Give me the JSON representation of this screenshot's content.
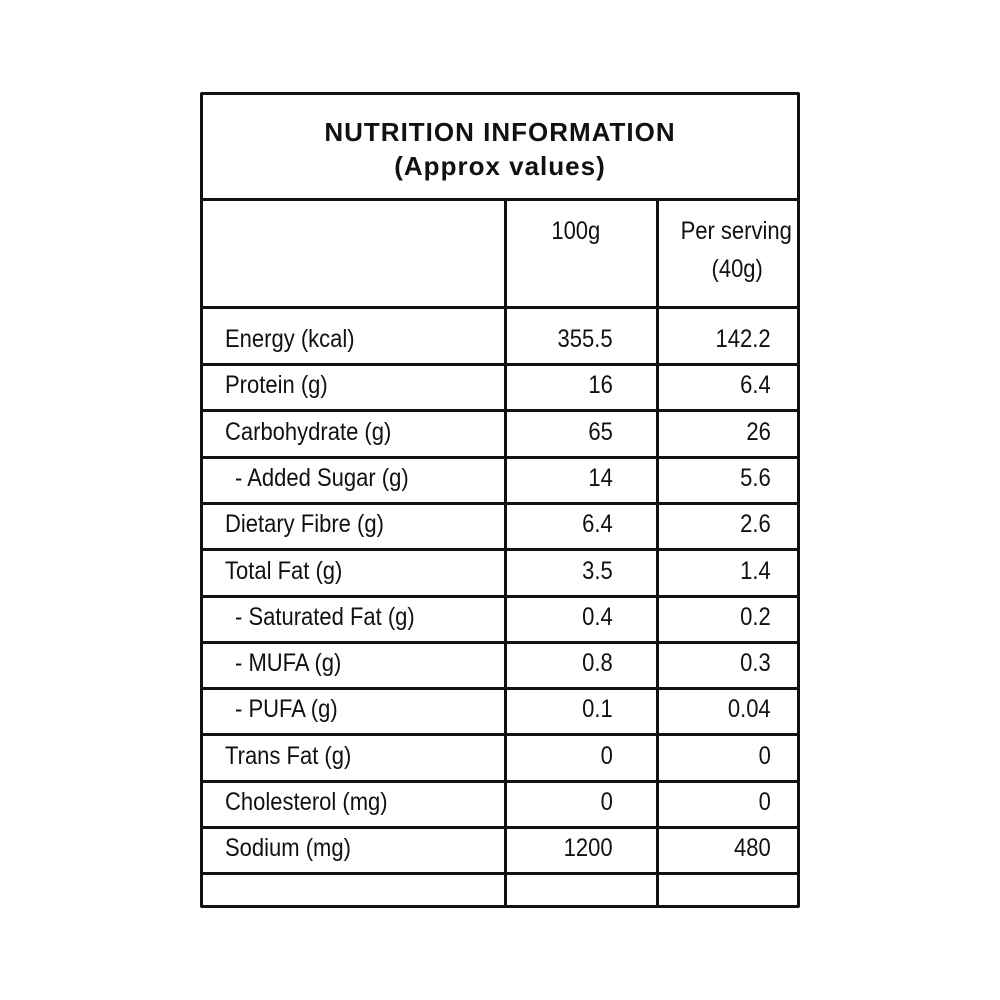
{
  "title": {
    "line1": "NUTRITION INFORMATION",
    "line2": "(Approx values)"
  },
  "header": {
    "col1": "100g",
    "col2": {
      "line1": "Per serving",
      "line2": "(40g)"
    }
  },
  "rows": [
    [
      "Energy (kcal)",
      "355.5",
      "142.2"
    ],
    [
      "Protein (g)",
      "16",
      "6.4"
    ],
    [
      "Carbohydrate (g)",
      "65",
      "26"
    ],
    [
      "- Added Sugar (g)",
      "14",
      "5.6"
    ],
    [
      "Dietary Fibre (g)",
      "6.4",
      "2.6"
    ],
    [
      "Total Fat (g)",
      "3.5",
      "1.4"
    ],
    [
      "- Saturated Fat (g)",
      "0.4",
      "0.2"
    ],
    [
      "- MUFA (g)",
      "0.8",
      "0.3"
    ],
    [
      "- PUFA (g)",
      "0.1",
      "0.04"
    ],
    [
      "Trans Fat (g)",
      "0",
      "0"
    ],
    [
      "Cholesterol (mg)",
      "0",
      "0"
    ],
    [
      "Sodium (mg)",
      "1200",
      "480"
    ]
  ]
}
